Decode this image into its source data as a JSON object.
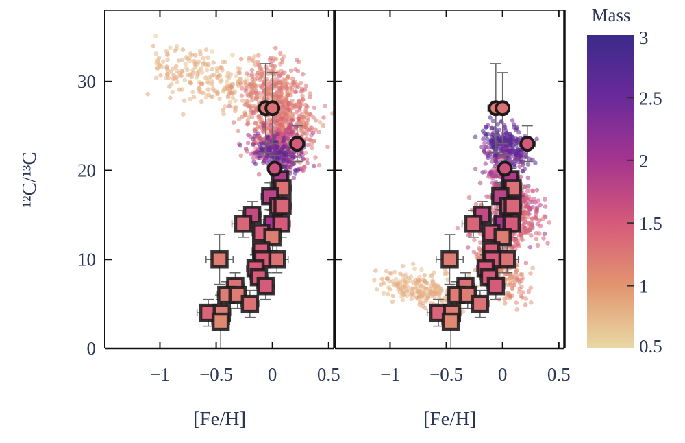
{
  "chart_data": {
    "type": "scatter",
    "title": "",
    "panels": [
      {
        "name": "left",
        "xlabel": "[Fe/H]",
        "model_clouds": [
          {
            "from": [
              -1.0,
              32.0
            ],
            "to": [
              -0.15,
              28.5
            ],
            "sx": 0.09,
            "sy": 1.4,
            "mass": 0.8,
            "mass_sd": 0.08,
            "n": 230
          },
          {
            "from": [
              -0.05,
              30.0
            ],
            "to": [
              0.15,
              24.0
            ],
            "sx": 0.14,
            "sy": 1.8,
            "mass": 1.2,
            "mass_sd": 0.12,
            "n": 650
          },
          {
            "from": [
              0.0,
              24.5
            ],
            "to": [
              0.1,
              21.0
            ],
            "sx": 0.12,
            "sy": 0.9,
            "mass": 1.7,
            "mass_sd": 0.2,
            "n": 260
          },
          {
            "from": [
              -0.03,
              23.0
            ],
            "to": [
              0.1,
              20.5
            ],
            "sx": 0.1,
            "sy": 0.7,
            "mass": 2.5,
            "mass_sd": 0.2,
            "n": 160
          }
        ]
      },
      {
        "name": "right",
        "xlabel": "[Fe/H]",
        "model_clouds": [
          {
            "from": [
              -0.05,
              24.0
            ],
            "to": [
              0.12,
              21.0
            ],
            "sx": 0.09,
            "sy": 0.9,
            "mass": 2.6,
            "mass_sd": 0.15,
            "n": 300
          },
          {
            "from": [
              -0.05,
              21.0
            ],
            "to": [
              0.15,
              14.0
            ],
            "sx": 0.1,
            "sy": 1.3,
            "mass": 1.9,
            "mass_sd": 0.15,
            "n": 260
          },
          {
            "from": [
              -0.15,
              13.0
            ],
            "to": [
              0.25,
              15.0
            ],
            "sx": 0.1,
            "sy": 1.8,
            "mass": 1.4,
            "mass_sd": 0.12,
            "n": 330
          },
          {
            "from": [
              -0.15,
              10.0
            ],
            "to": [
              0.1,
              7.0
            ],
            "sx": 0.08,
            "sy": 1.2,
            "mass": 1.1,
            "mass_sd": 0.1,
            "n": 200
          },
          {
            "from": [
              -1.0,
              7.5
            ],
            "to": [
              -0.3,
              5.5
            ],
            "sx": 0.1,
            "sy": 1.0,
            "mass": 0.8,
            "mass_sd": 0.07,
            "n": 230
          }
        ]
      }
    ],
    "observed_circles": [
      {
        "x": -0.06,
        "y": 27.0,
        "xerr": 0.07,
        "yerr": 5.0,
        "mass": 1.2
      },
      {
        "x": 0.0,
        "y": 27.0,
        "xerr": 0.05,
        "yerr": 4.0,
        "mass": 1.3
      },
      {
        "x": 0.22,
        "y": 23.0,
        "xerr": 0.07,
        "yerr": 2.0,
        "mass": 1.5
      },
      {
        "x": 0.02,
        "y": 20.2,
        "xerr": 0.05,
        "yerr": 1.5,
        "mass": 1.6
      }
    ],
    "observed_squares": [
      {
        "x": 0.07,
        "y": 19.0,
        "xerr": 0.06,
        "yerr": 1.2,
        "mass": 1.9
      },
      {
        "x": 0.09,
        "y": 18.0,
        "xerr": 0.08,
        "yerr": 1.2,
        "mass": 1.3
      },
      {
        "x": -0.02,
        "y": 17.1,
        "xerr": 0.08,
        "yerr": 1.5,
        "mass": 1.8
      },
      {
        "x": 0.05,
        "y": 16.0,
        "xerr": 0.08,
        "yerr": 1.5,
        "mass": 1.5
      },
      {
        "x": 0.09,
        "y": 16.0,
        "xerr": 0.08,
        "yerr": 1.5,
        "mass": 1.4
      },
      {
        "x": -0.18,
        "y": 15.0,
        "xerr": 0.08,
        "yerr": 1.5,
        "mass": 1.7
      },
      {
        "x": -0.26,
        "y": 14.0,
        "xerr": 0.1,
        "yerr": 1.5,
        "mass": 1.4
      },
      {
        "x": 0.0,
        "y": 14.0,
        "xerr": 0.08,
        "yerr": 1.5,
        "mass": 2.0
      },
      {
        "x": 0.08,
        "y": 14.0,
        "xerr": 0.08,
        "yerr": 1.5,
        "mass": 1.5
      },
      {
        "x": -0.1,
        "y": 13.0,
        "xerr": 0.08,
        "yerr": 1.5,
        "mass": 1.5
      },
      {
        "x": 0.0,
        "y": 12.5,
        "xerr": 0.08,
        "yerr": 1.5,
        "mass": 1.2
      },
      {
        "x": -0.1,
        "y": 11.0,
        "xerr": 0.08,
        "yerr": 1.5,
        "mass": 1.5
      },
      {
        "x": -0.47,
        "y": 10.0,
        "xerr": 0.12,
        "yerr": 2.8,
        "mass": 1.2
      },
      {
        "x": 0.04,
        "y": 10.0,
        "xerr": 0.1,
        "yerr": 1.5,
        "mass": 1.3
      },
      {
        "x": -0.09,
        "y": 10.0,
        "xerr": 0.08,
        "yerr": 1.5,
        "mass": 1.5
      },
      {
        "x": -0.15,
        "y": 9.0,
        "xerr": 0.08,
        "yerr": 1.5,
        "mass": 1.5
      },
      {
        "x": -0.12,
        "y": 8.0,
        "xerr": 0.08,
        "yerr": 1.5,
        "mass": 1.5
      },
      {
        "x": -0.06,
        "y": 7.0,
        "xerr": 0.08,
        "yerr": 1.5,
        "mass": 1.5
      },
      {
        "x": -0.33,
        "y": 7.0,
        "xerr": 0.08,
        "yerr": 1.5,
        "mass": 1.3
      },
      {
        "x": -0.41,
        "y": 6.0,
        "xerr": 0.08,
        "yerr": 1.5,
        "mass": 1.2
      },
      {
        "x": -0.31,
        "y": 6.0,
        "xerr": 0.08,
        "yerr": 1.5,
        "mass": 1.2
      },
      {
        "x": -0.2,
        "y": 5.0,
        "xerr": 0.08,
        "yerr": 1.5,
        "mass": 1.3
      },
      {
        "x": -0.57,
        "y": 4.0,
        "xerr": 0.1,
        "yerr": 1.5,
        "mass": 1.4
      },
      {
        "x": -0.45,
        "y": 4.0,
        "xerr": 0.08,
        "yerr": 1.5,
        "mass": 1.2
      },
      {
        "x": -0.46,
        "y": 3.0,
        "xerr": 0.08,
        "yerr": 3.0,
        "mass": 1.1
      }
    ],
    "xlim": [
      -1.49,
      0.55
    ],
    "ylim": [
      0,
      38
    ],
    "xticks": [
      -1,
      -0.5,
      0,
      0.5
    ],
    "xtick_labels": [
      "−1",
      "−0.5",
      "0",
      "0.5"
    ],
    "yticks": [
      0,
      10,
      20,
      30
    ],
    "ytick_labels": [
      "0",
      "10",
      "20",
      "30"
    ],
    "ylabel": "¹²C/¹³C",
    "grid": false,
    "colorbar": {
      "title": "Mass",
      "range": [
        0.5,
        3
      ],
      "ticks": [
        0.5,
        1,
        1.5,
        2,
        2.5,
        3
      ],
      "tick_labels": [
        "0.5",
        "1",
        "1.5",
        "2",
        "2.5",
        "3"
      ],
      "colors": [
        "#e8d9a5",
        "#e2956f",
        "#d65a7a",
        "#a5358f",
        "#6a2a9a",
        "#3b2a8a"
      ]
    },
    "colors": {
      "text": "#2b3655",
      "errorbar": "#666666",
      "marker_edge": "#1e1a1c"
    }
  }
}
